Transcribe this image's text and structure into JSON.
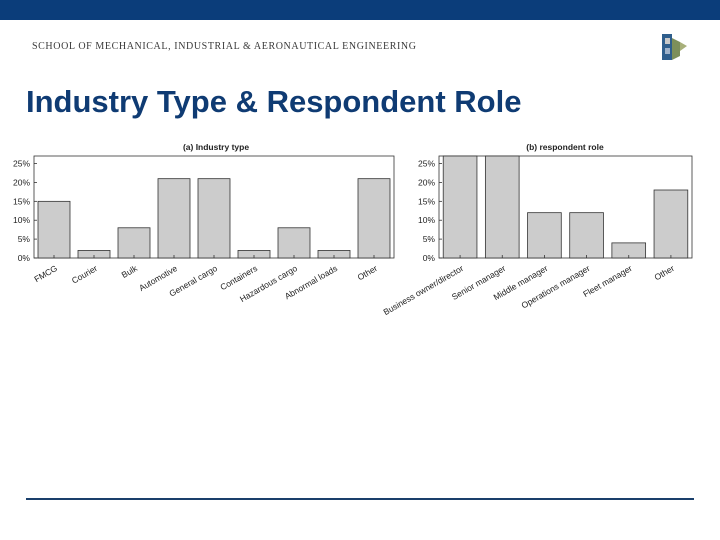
{
  "header": {
    "school_name": "SCHOOL OF MECHANICAL, INDUSTRIAL & AERONAUTICAL ENGINEERING",
    "bar_color": "#0b3d7a"
  },
  "slide": {
    "title": "Industry Type & Respondent Role",
    "title_color": "#0f3b73"
  },
  "chart_data": [
    {
      "type": "bar",
      "title": "(a) Industry type",
      "xlabel": "",
      "ylabel": "",
      "ylim": [
        0,
        27
      ],
      "yticks": [
        "0%",
        "5%",
        "10%",
        "15%",
        "20%",
        "25%"
      ],
      "yticks_values": [
        0,
        5,
        10,
        15,
        20,
        25
      ],
      "categories": [
        "FMCG",
        "Courier",
        "Bulk",
        "Automotive",
        "General cargo",
        "Containers",
        "Hazardous cargo",
        "Abnormal loads",
        "Other"
      ],
      "values": [
        15,
        2,
        8,
        21,
        21,
        2,
        8,
        2,
        21
      ],
      "bar_color": "#cccccc",
      "grid": false
    },
    {
      "type": "bar",
      "title": "(b) respondent role",
      "xlabel": "",
      "ylabel": "",
      "ylim": [
        0,
        27
      ],
      "yticks": [
        "0%",
        "5%",
        "10%",
        "15%",
        "20%",
        "25%"
      ],
      "yticks_values": [
        0,
        5,
        10,
        15,
        20,
        25
      ],
      "categories": [
        "Business owner/director",
        "Senior manager",
        "Middle manager",
        "Operations manager",
        "Fleet manager",
        "Other"
      ],
      "values": [
        27,
        27,
        12,
        12,
        4,
        18
      ],
      "bar_color": "#cccccc",
      "grid": false
    }
  ]
}
